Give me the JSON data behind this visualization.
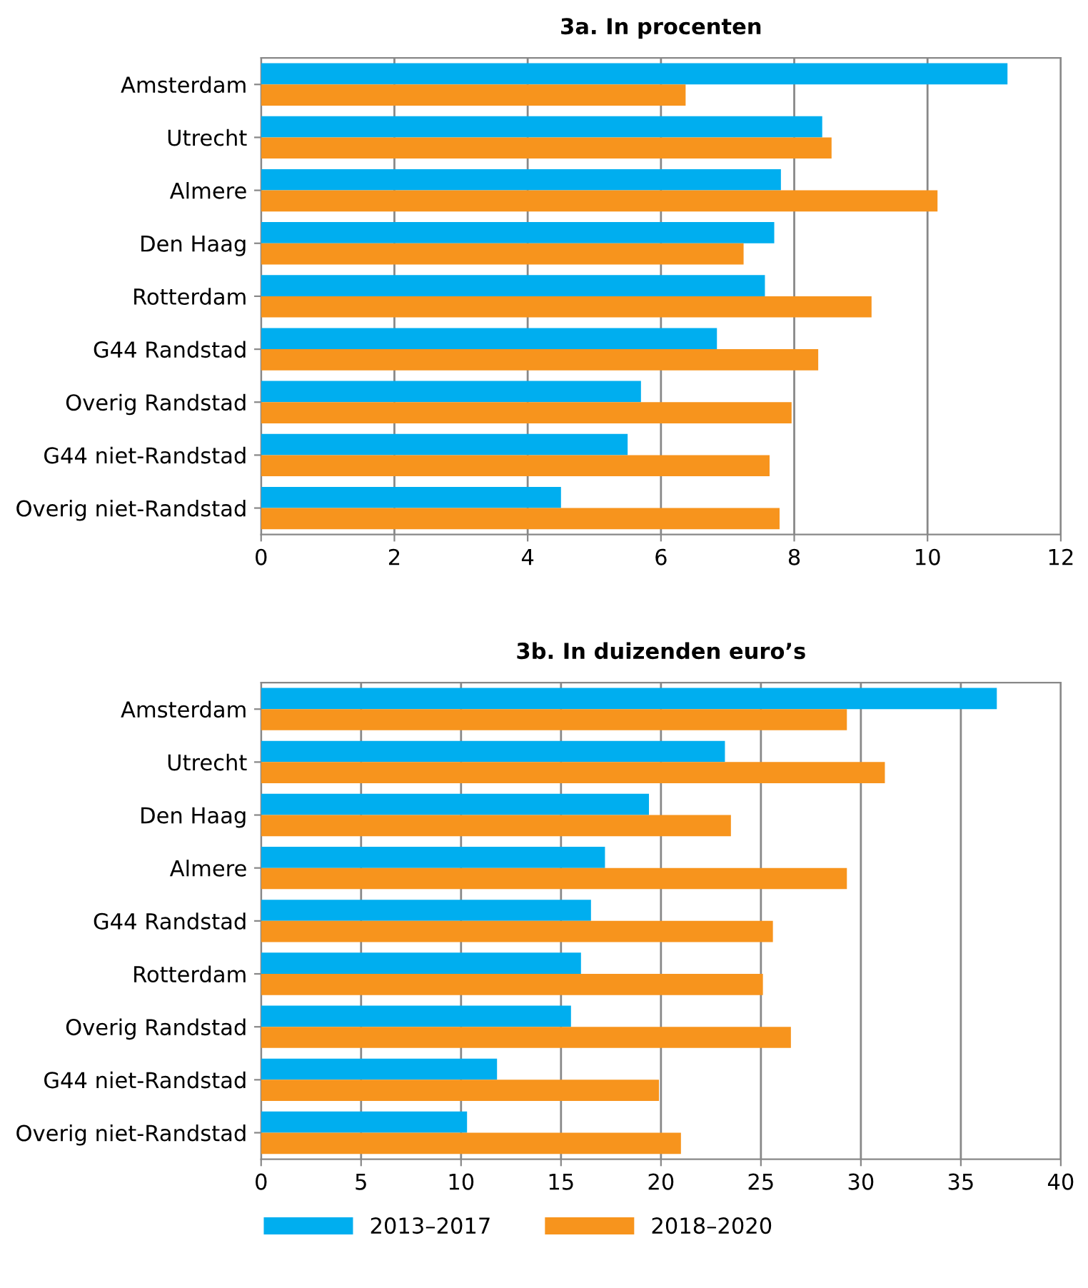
{
  "chart_data": [
    {
      "type": "bar",
      "orientation": "horizontal",
      "title": "3a. In procenten",
      "categories": [
        "Amsterdam",
        "Utrecht",
        "Almere",
        "Den Haag",
        "Rotterdam",
        "G44 Randstad",
        "Overig Randstad",
        "G44 niet-Randstad",
        "Overig niet-Randstad"
      ],
      "series": [
        {
          "color": "#00aeef",
          "values": [
            11.2,
            8.42,
            7.8,
            7.7,
            7.56,
            6.84,
            5.7,
            5.5,
            4.5
          ]
        },
        {
          "color": "#f7941d",
          "values": [
            6.37,
            8.56,
            10.15,
            7.24,
            9.16,
            8.36,
            7.96,
            7.63,
            7.78
          ]
        }
      ],
      "xlim": [
        0,
        12
      ],
      "xticks": [
        0,
        2,
        4,
        6,
        8,
        10,
        12
      ],
      "grid": "x",
      "legend": false
    },
    {
      "type": "bar",
      "orientation": "horizontal",
      "title": "3b. In duizenden euro’s",
      "categories": [
        "Amsterdam",
        "Utrecht",
        "Den Haag",
        "Almere",
        "G44 Randstad",
        "Rotterdam",
        "Overig Randstad",
        "G44 niet-Randstad",
        "Overig niet-Randstad"
      ],
      "series": [
        {
          "name": "2013–2017",
          "color": "#00aeef",
          "values": [
            36.8,
            23.2,
            19.4,
            17.2,
            16.5,
            16.0,
            15.5,
            11.8,
            10.3
          ]
        },
        {
          "name": "2018–2020",
          "color": "#f7941d",
          "values": [
            29.3,
            31.2,
            23.5,
            29.3,
            25.6,
            25.1,
            26.5,
            19.9,
            21.0
          ]
        }
      ],
      "xlim": [
        0,
        40
      ],
      "xticks": [
        0,
        5,
        10,
        15,
        20,
        25,
        30,
        35,
        40
      ],
      "grid": "x",
      "legend": "bottom left"
    }
  ]
}
